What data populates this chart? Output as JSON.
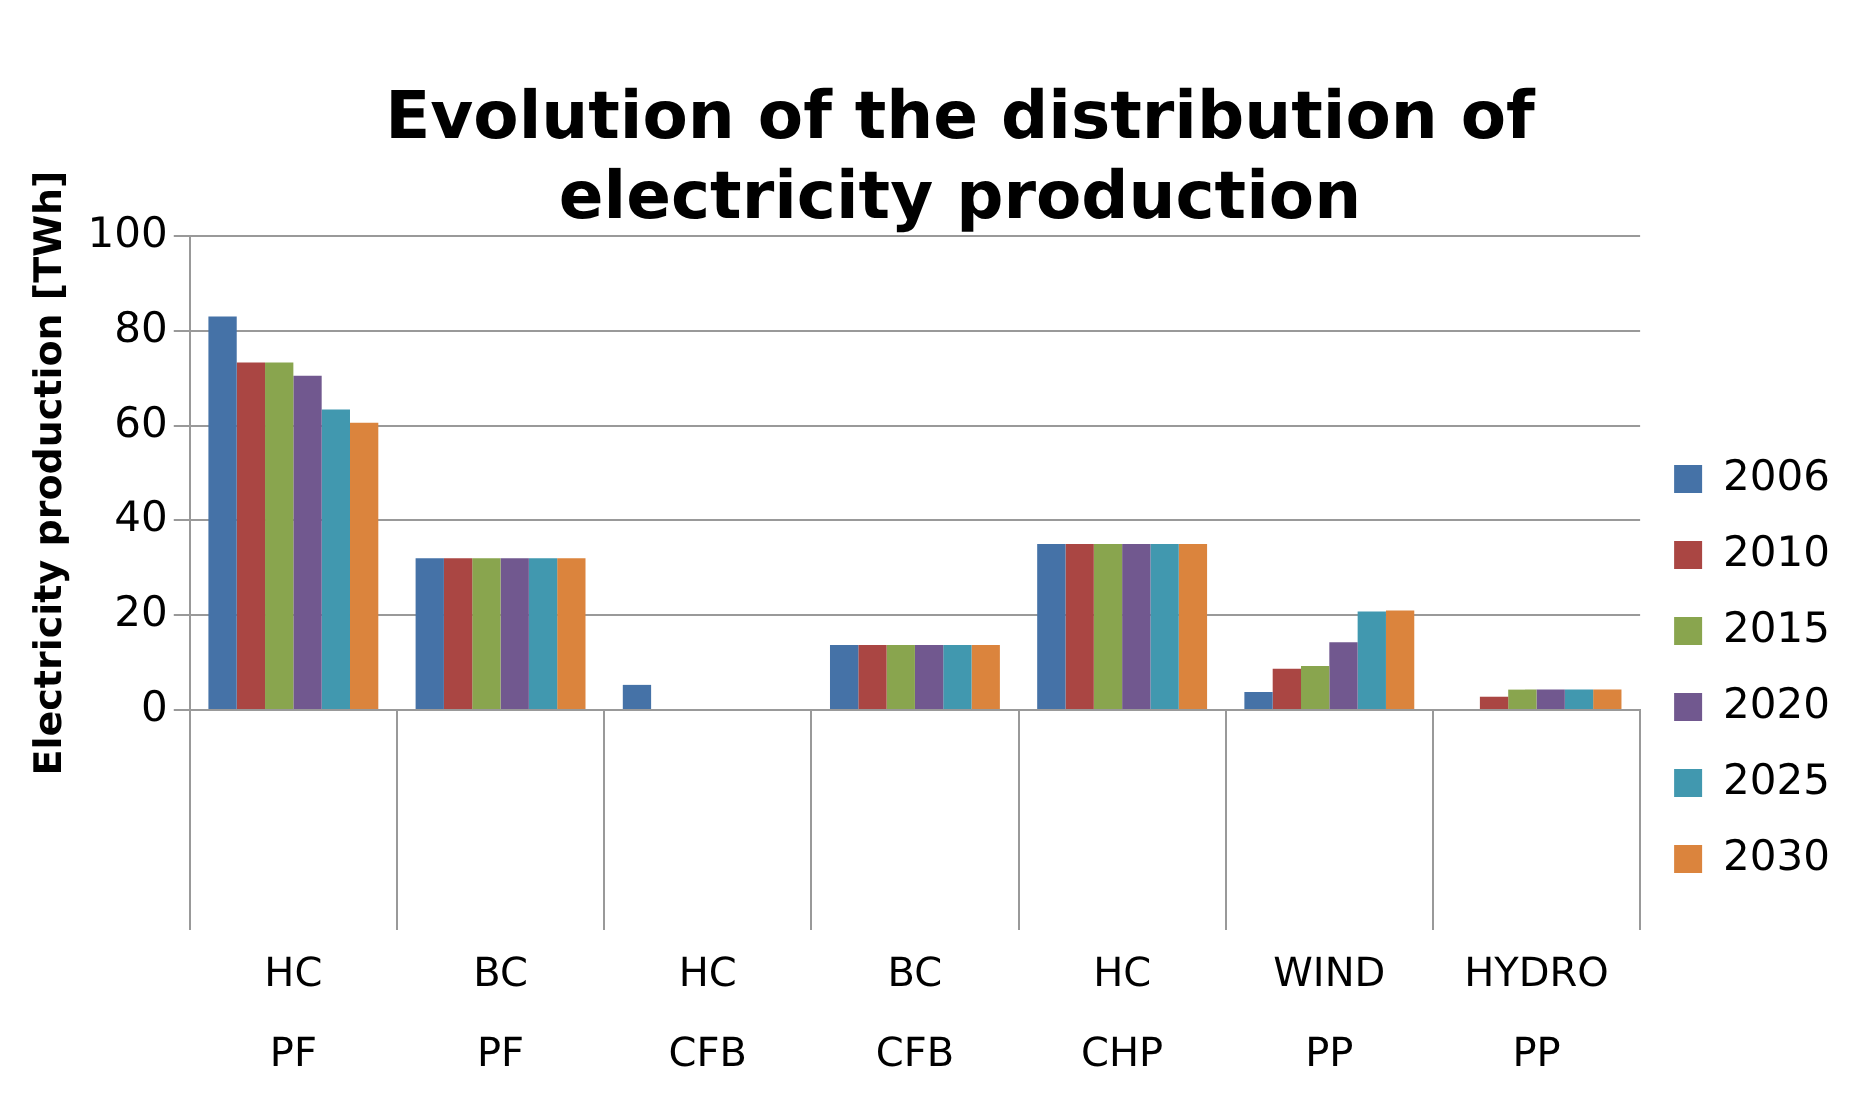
{
  "chart_data": {
    "type": "bar",
    "title": "Evolution of the distribution of electricity production",
    "ylabel": "Electricity production [TWh]",
    "categories": [
      "HC PF",
      "BC PF",
      "HC CFB",
      "BC CFB",
      "HC CHP",
      "WIND PP",
      "HYDRO PP"
    ],
    "series": [
      {
        "name": "2006",
        "color": "#4572a7",
        "values": [
          83,
          32,
          5.3,
          13.7,
          35,
          3.8,
          0
        ]
      },
      {
        "name": "2010",
        "color": "#aa4643",
        "values": [
          73.3,
          32,
          0,
          13.7,
          35,
          8.7,
          2.8
        ]
      },
      {
        "name": "2015",
        "color": "#89a54e",
        "values": [
          73.3,
          32,
          0,
          13.7,
          35,
          9.3,
          4.3
        ]
      },
      {
        "name": "2020",
        "color": "#71588f",
        "values": [
          70.5,
          32,
          0,
          13.7,
          35,
          14.3,
          4.3
        ]
      },
      {
        "name": "2025",
        "color": "#4198af",
        "values": [
          63.4,
          32,
          0,
          13.7,
          35,
          20.8,
          4.3
        ]
      },
      {
        "name": "2030",
        "color": "#db843d",
        "values": [
          60.6,
          32,
          0,
          13.7,
          35,
          21,
          4.3
        ]
      }
    ],
    "ylim": [
      0,
      100
    ],
    "yticks": [
      0,
      20,
      40,
      60,
      80,
      100
    ],
    "grid": "y",
    "legend": "right"
  }
}
